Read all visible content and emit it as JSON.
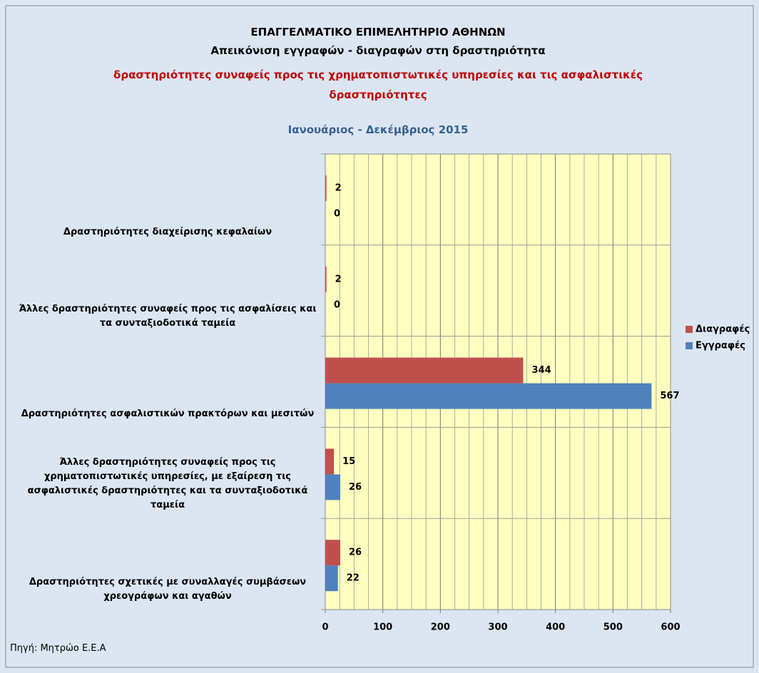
{
  "chart_data": {
    "type": "bar",
    "orientation": "horizontal",
    "title": "ΕΠΑΓΓΕΛΜΑΤΙΚΟ ΕΠΙΜΕΛΗΤΗΡΙΟ ΑΘΗΝΩΝ",
    "subtitle": "Απεικόνιση εγγραφών - διαγραφών στη  δραστηριότητα",
    "activity": "δραστηριότητες συναφείς προς τις χρηματοπιστωτικές υπηρεσίες και τις ασφαλιστικές δραστηριότητες",
    "period": "Ιανουάριος - Δεκέμβριος 2015",
    "source": "Πηγή: Μητρώο Ε.Ε.Α",
    "categories": [
      "Δραστηριότητες διαχείρισης κεφαλαίων",
      "Άλλες δραστηριότητες συναφείς προς τις ασφαλίσεις και τα συνταξιοδοτικά ταμεία",
      "Δραστηριότητες ασφαλιστικών πρακτόρων και μεσιτών",
      "Άλλες δραστηριότητες συναφείς προς τις χρηματοπιστωτικές υπηρεσίες, με εξαίρεση τις ασφαλιστικές δραστηριότητες και τα συνταξιοδοτικά ταμεία",
      "Δραστηριότητες σχετικές με συναλλαγές συμβάσεων χρεογράφων και αγαθών"
    ],
    "series": [
      {
        "name": "Διαγραφές",
        "color": "#c0504d",
        "values": [
          2,
          2,
          344,
          15,
          26
        ]
      },
      {
        "name": "Εγγραφές",
        "color": "#4f81bd",
        "values": [
          0,
          0,
          567,
          26,
          22
        ]
      }
    ],
    "xlim": [
      0,
      600
    ],
    "xticks": [
      0,
      100,
      200,
      300,
      400,
      500,
      600
    ],
    "grid": true,
    "legend": "right"
  }
}
